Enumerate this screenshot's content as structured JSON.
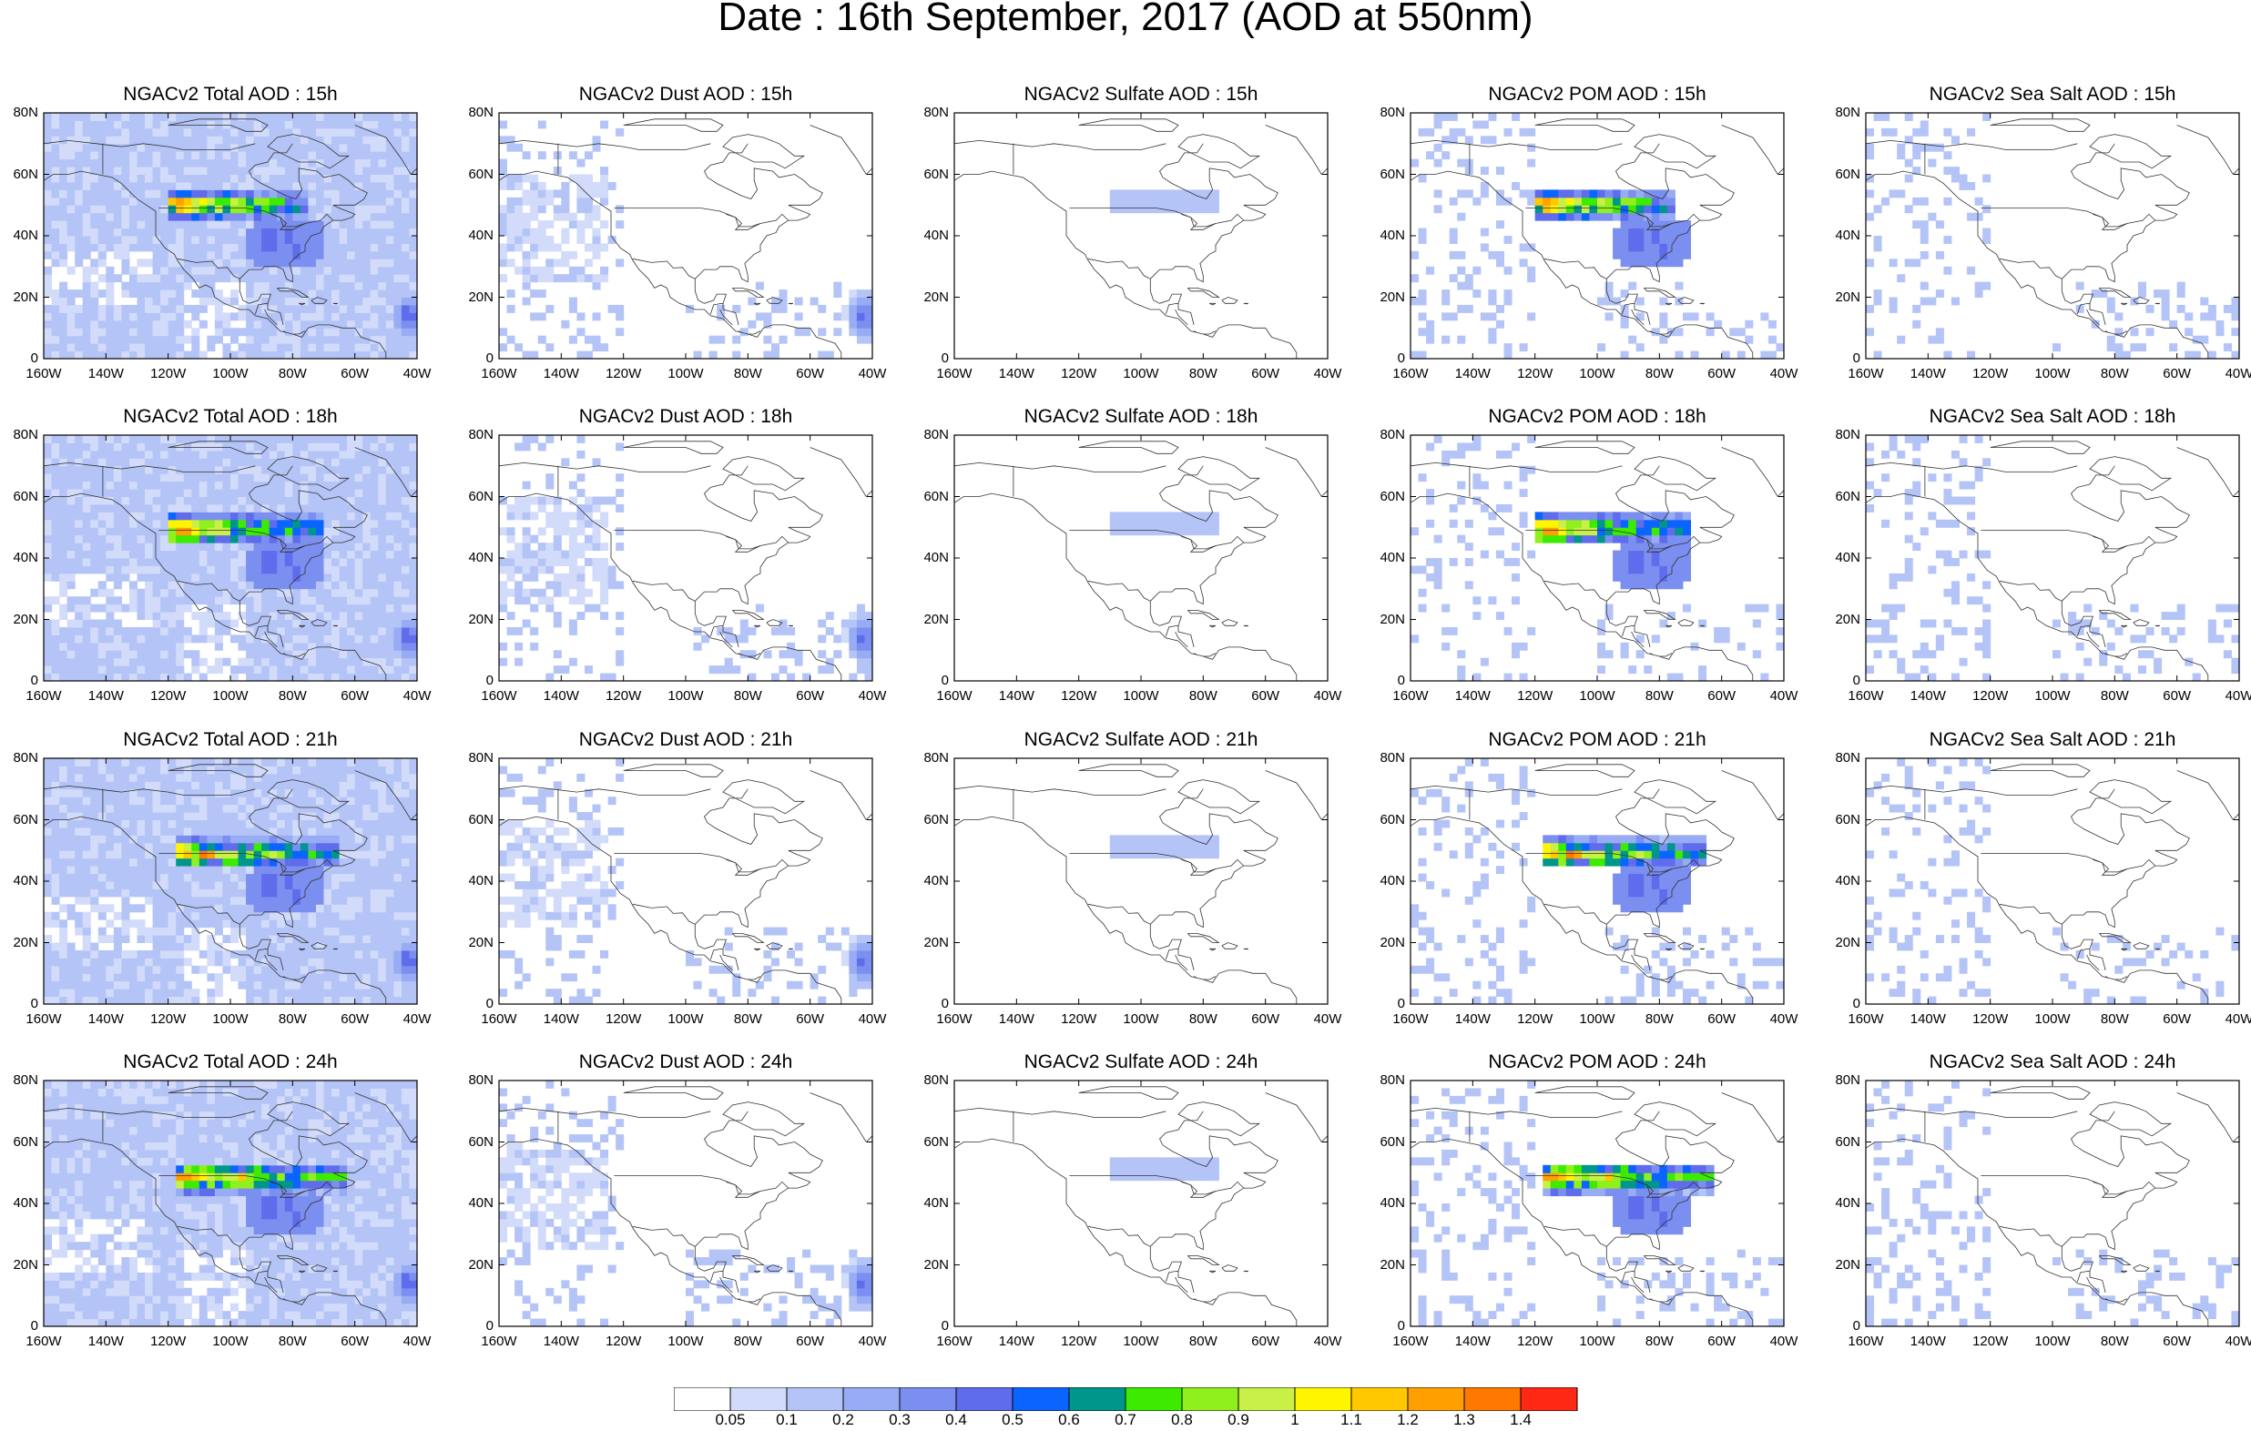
{
  "title": "Date : 16th September, 2017 (AOD at 550nm)",
  "map": {
    "lon_range": [
      -160,
      -40
    ],
    "lat_range": [
      0,
      80
    ],
    "x_ticks": [
      "160W",
      "140W",
      "120W",
      "100W",
      "80W",
      "60W",
      "40W"
    ],
    "y_ticks": [
      "0",
      "20N",
      "40N",
      "60N",
      "80N"
    ]
  },
  "variables": [
    {
      "key": "total",
      "label": "Total AOD"
    },
    {
      "key": "dust",
      "label": "Dust AOD"
    },
    {
      "key": "sulfate",
      "label": "Sulfate AOD"
    },
    {
      "key": "pom",
      "label": "POM AOD"
    },
    {
      "key": "seasalt",
      "label": "Sea Salt AOD"
    }
  ],
  "hours": [
    "15h",
    "18h",
    "21h",
    "24h"
  ],
  "panels": [
    [
      "NGACv2 Total AOD : 15h",
      "NGACv2 Dust AOD : 15h",
      "NGACv2 Sulfate AOD : 15h",
      "NGACv2 POM AOD : 15h",
      "NGACv2 Sea Salt AOD : 15h"
    ],
    [
      "NGACv2 Total AOD : 18h",
      "NGACv2 Dust AOD : 18h",
      "NGACv2 Sulfate AOD : 18h",
      "NGACv2 POM AOD : 18h",
      "NGACv2 Sea Salt AOD : 18h"
    ],
    [
      "NGACv2 Total AOD : 21h",
      "NGACv2 Dust AOD : 21h",
      "NGACv2 Sulfate AOD : 21h",
      "NGACv2 POM AOD : 21h",
      "NGACv2 Sea Salt AOD : 21h"
    ],
    [
      "NGACv2 Total AOD : 24h",
      "NGACv2 Dust AOD : 24h",
      "NGACv2 Sulfate AOD : 24h",
      "NGACv2 POM AOD : 24h",
      "NGACv2 Sea Salt  AOD : 24h"
    ]
  ],
  "colorbar": {
    "labels": [
      "0.05",
      "0.1",
      "0.2",
      "0.3",
      "0.4",
      "0.5",
      "0.6",
      "0.7",
      "0.8",
      "0.9",
      "1",
      "1.1",
      "1.2",
      "1.3",
      "1.4"
    ],
    "colors": [
      "#ffffff",
      "#d2dcfa",
      "#b4c4f7",
      "#97acf4",
      "#7b8ff0",
      "#5f6ceb",
      "#0a64ff",
      "#00968c",
      "#3ceb00",
      "#8ff01e",
      "#c8f046",
      "#fff500",
      "#ffc800",
      "#ffa000",
      "#ff7800",
      "#ff2814"
    ]
  },
  "features": {
    "total": {
      "background": 0.1,
      "plume": true,
      "plume_strength": 1.4,
      "atlantic_blob": 0.5,
      "ocean_noise": 0.2
    },
    "dust": {
      "background": 0.0,
      "plume": false,
      "plume_strength": 0.0,
      "atlantic_blob": 0.45,
      "ocean_noise": 0.1
    },
    "sulfate": {
      "background": 0.0,
      "plume": false,
      "plume_strength": 0.1,
      "atlantic_blob": 0.0,
      "ocean_noise": 0.0
    },
    "pom": {
      "background": 0.0,
      "plume": true,
      "plume_strength": 1.4,
      "atlantic_blob": 0.0,
      "ocean_noise": 0.1
    },
    "seasalt": {
      "background": 0.0,
      "plume": false,
      "plume_strength": 0.0,
      "atlantic_blob": 0.0,
      "ocean_noise": 0.1
    }
  }
}
